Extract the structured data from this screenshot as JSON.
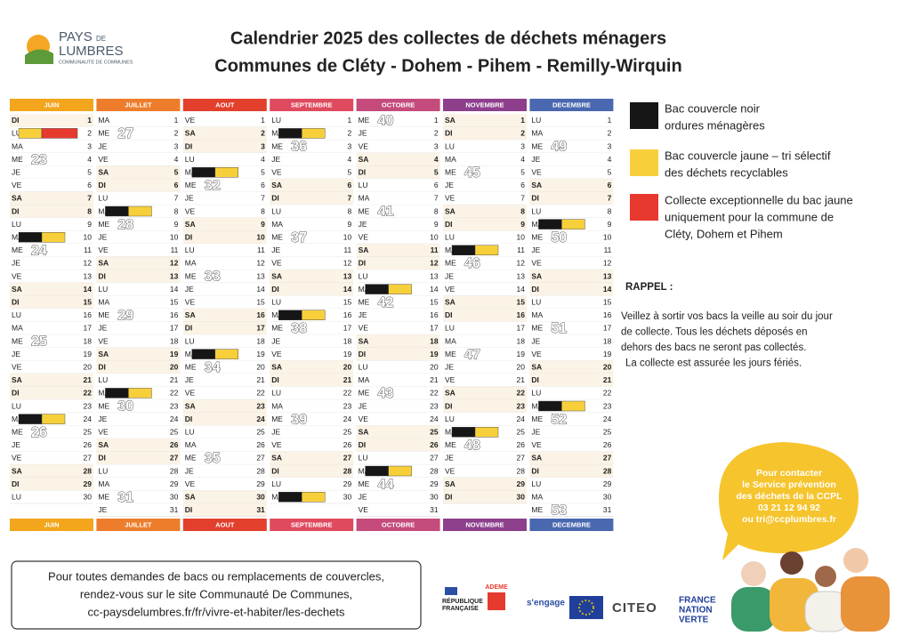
{
  "header": {
    "logo": {
      "pays": "PAYS",
      "de": "DE",
      "lumbres": "LUMBRES",
      "cc": "COMMUNAUTÉ DE COMMUNES"
    },
    "title": "Calendrier 2025 des collectes de déchets ménagers",
    "subtitle": "Communes de Cléty - Dohem - Pihem - Remilly-Wirquin"
  },
  "calendar": {
    "months": [
      {
        "name": "JUIN",
        "color": "#f3a51c",
        "weeks": [
          23,
          24,
          25,
          26
        ],
        "days": [
          [
            "DI",
            1
          ],
          [
            "LU",
            2,
            [
              "jaune",
              "rouge"
            ]
          ],
          [
            "MA",
            3
          ],
          [
            "ME",
            4
          ],
          [
            "JE",
            5
          ],
          [
            "VE",
            6
          ],
          [
            "SA",
            7
          ],
          [
            "DI",
            8
          ],
          [
            "LU",
            9
          ],
          [
            "MA",
            10,
            [
              "noir",
              "jaune"
            ]
          ],
          [
            "ME",
            11
          ],
          [
            "JE",
            12
          ],
          [
            "VE",
            13
          ],
          [
            "SA",
            14
          ],
          [
            "DI",
            15
          ],
          [
            "LU",
            16
          ],
          [
            "MA",
            17
          ],
          [
            "ME",
            18
          ],
          [
            "JE",
            19
          ],
          [
            "VE",
            20
          ],
          [
            "SA",
            21
          ],
          [
            "DI",
            22
          ],
          [
            "LU",
            23
          ],
          [
            "MA",
            24,
            [
              "noir",
              "jaune"
            ]
          ],
          [
            "ME",
            25
          ],
          [
            "JE",
            26
          ],
          [
            "VE",
            27
          ],
          [
            "SA",
            28
          ],
          [
            "DI",
            29
          ],
          [
            "LU",
            30
          ]
        ]
      },
      {
        "name": "JUILLET",
        "color": "#ee7d2b",
        "weeks": [
          27,
          28,
          29,
          30,
          31
        ],
        "days": [
          [
            "MA",
            1
          ],
          [
            "ME",
            2
          ],
          [
            "JE",
            3
          ],
          [
            "VE",
            4
          ],
          [
            "SA",
            5
          ],
          [
            "DI",
            6
          ],
          [
            "LU",
            7
          ],
          [
            "MA",
            8,
            [
              "noir",
              "jaune"
            ]
          ],
          [
            "ME",
            9
          ],
          [
            "JE",
            10
          ],
          [
            "VE",
            11
          ],
          [
            "SA",
            12
          ],
          [
            "DI",
            13
          ],
          [
            "LU",
            14
          ],
          [
            "MA",
            15
          ],
          [
            "ME",
            16
          ],
          [
            "JE",
            17
          ],
          [
            "VE",
            18
          ],
          [
            "SA",
            19
          ],
          [
            "DI",
            20
          ],
          [
            "LU",
            21
          ],
          [
            "MA",
            22,
            [
              "noir",
              "jaune"
            ]
          ],
          [
            "ME",
            23
          ],
          [
            "JE",
            24
          ],
          [
            "VE",
            25
          ],
          [
            "SA",
            26
          ],
          [
            "DI",
            27
          ],
          [
            "LU",
            28
          ],
          [
            "MA",
            29
          ],
          [
            "ME",
            30
          ],
          [
            "JE",
            31
          ]
        ]
      },
      {
        "name": "AOUT",
        "color": "#e2402c",
        "weeks": [
          32,
          33,
          34,
          35
        ],
        "days": [
          [
            "VE",
            1
          ],
          [
            "SA",
            2
          ],
          [
            "DI",
            3
          ],
          [
            "LU",
            4
          ],
          [
            "MA",
            5,
            [
              "noir",
              "jaune"
            ]
          ],
          [
            "ME",
            6
          ],
          [
            "JE",
            7
          ],
          [
            "VE",
            8
          ],
          [
            "SA",
            9
          ],
          [
            "DI",
            10
          ],
          [
            "LU",
            11
          ],
          [
            "MA",
            12
          ],
          [
            "ME",
            13
          ],
          [
            "JE",
            14
          ],
          [
            "VE",
            15
          ],
          [
            "SA",
            16
          ],
          [
            "DI",
            17
          ],
          [
            "LU",
            18
          ],
          [
            "MA",
            19,
            [
              "noir",
              "jaune"
            ]
          ],
          [
            "ME",
            20
          ],
          [
            "JE",
            21
          ],
          [
            "VE",
            22
          ],
          [
            "SA",
            23
          ],
          [
            "DI",
            24
          ],
          [
            "LU",
            25
          ],
          [
            "MA",
            26
          ],
          [
            "ME",
            27
          ],
          [
            "JE",
            28
          ],
          [
            "VE",
            29
          ],
          [
            "SA",
            30
          ],
          [
            "DI",
            31
          ]
        ]
      },
      {
        "name": "SEPTEMBRE",
        "color": "#df4a5e",
        "weeks": [
          36,
          37,
          38,
          39
        ],
        "days": [
          [
            "LU",
            1
          ],
          [
            "MA",
            2,
            [
              "noir",
              "jaune"
            ]
          ],
          [
            "ME",
            3
          ],
          [
            "JE",
            4
          ],
          [
            "VE",
            5
          ],
          [
            "SA",
            6
          ],
          [
            "DI",
            7
          ],
          [
            "LU",
            8
          ],
          [
            "MA",
            9
          ],
          [
            "ME",
            10
          ],
          [
            "JE",
            11
          ],
          [
            "VE",
            12
          ],
          [
            "SA",
            13
          ],
          [
            "DI",
            14
          ],
          [
            "LU",
            15
          ],
          [
            "MA",
            16,
            [
              "noir",
              "jaune"
            ]
          ],
          [
            "ME",
            17
          ],
          [
            "JE",
            18
          ],
          [
            "VE",
            19
          ],
          [
            "SA",
            20
          ],
          [
            "DI",
            21
          ],
          [
            "LU",
            22
          ],
          [
            "MA",
            23
          ],
          [
            "ME",
            24
          ],
          [
            "JE",
            25
          ],
          [
            "VE",
            26
          ],
          [
            "SA",
            27
          ],
          [
            "DI",
            28
          ],
          [
            "LU",
            29
          ],
          [
            "MA",
            30,
            [
              "noir",
              "jaune"
            ]
          ]
        ]
      },
      {
        "name": "OCTOBRE",
        "color": "#c54b7c",
        "weeks": [
          40,
          41,
          42,
          43,
          44
        ],
        "days": [
          [
            "ME",
            1
          ],
          [
            "JE",
            2
          ],
          [
            "VE",
            3
          ],
          [
            "SA",
            4
          ],
          [
            "DI",
            5
          ],
          [
            "LU",
            6
          ],
          [
            "MA",
            7
          ],
          [
            "ME",
            8
          ],
          [
            "JE",
            9
          ],
          [
            "VE",
            10
          ],
          [
            "SA",
            11
          ],
          [
            "DI",
            12
          ],
          [
            "LU",
            13
          ],
          [
            "MA",
            14,
            [
              "noir",
              "jaune"
            ]
          ],
          [
            "ME",
            15
          ],
          [
            "JE",
            16
          ],
          [
            "VE",
            17
          ],
          [
            "SA",
            18
          ],
          [
            "DI",
            19
          ],
          [
            "LU",
            20
          ],
          [
            "MA",
            21
          ],
          [
            "ME",
            22
          ],
          [
            "JE",
            23
          ],
          [
            "VE",
            24
          ],
          [
            "SA",
            25
          ],
          [
            "DI",
            26
          ],
          [
            "LU",
            27
          ],
          [
            "MA",
            28,
            [
              "noir",
              "jaune"
            ]
          ],
          [
            "ME",
            29
          ],
          [
            "JE",
            30
          ],
          [
            "VE",
            31
          ]
        ]
      },
      {
        "name": "NOVEMBRE",
        "color": "#8d3f8c",
        "weeks": [
          45,
          46,
          47,
          48
        ],
        "days": [
          [
            "SA",
            1
          ],
          [
            "DI",
            2
          ],
          [
            "LU",
            3
          ],
          [
            "MA",
            4
          ],
          [
            "ME",
            5
          ],
          [
            "JE",
            6
          ],
          [
            "VE",
            7
          ],
          [
            "SA",
            8
          ],
          [
            "DI",
            9
          ],
          [
            "LU",
            10
          ],
          [
            "MA",
            11,
            [
              "noir",
              "jaune"
            ]
          ],
          [
            "ME",
            12
          ],
          [
            "JE",
            13
          ],
          [
            "VE",
            14
          ],
          [
            "SA",
            15
          ],
          [
            "DI",
            16
          ],
          [
            "LU",
            17
          ],
          [
            "MA",
            18
          ],
          [
            "ME",
            19
          ],
          [
            "JE",
            20
          ],
          [
            "VE",
            21
          ],
          [
            "SA",
            22
          ],
          [
            "DI",
            23
          ],
          [
            "LU",
            24
          ],
          [
            "MA",
            25,
            [
              "noir",
              "jaune"
            ]
          ],
          [
            "ME",
            26
          ],
          [
            "JE",
            27
          ],
          [
            "VE",
            28
          ],
          [
            "SA",
            29
          ],
          [
            "DI",
            30
          ]
        ]
      },
      {
        "name": "DECEMBRE",
        "color": "#4a68b0",
        "weeks": [
          49,
          50,
          51,
          52,
          53
        ],
        "days": [
          [
            "LU",
            1
          ],
          [
            "MA",
            2
          ],
          [
            "ME",
            3
          ],
          [
            "JE",
            4
          ],
          [
            "VE",
            5
          ],
          [
            "SA",
            6
          ],
          [
            "DI",
            7
          ],
          [
            "LU",
            8
          ],
          [
            "MA",
            9,
            [
              "noir",
              "jaune"
            ]
          ],
          [
            "ME",
            10
          ],
          [
            "JE",
            11
          ],
          [
            "VE",
            12
          ],
          [
            "SA",
            13
          ],
          [
            "DI",
            14
          ],
          [
            "LU",
            15
          ],
          [
            "MA",
            16
          ],
          [
            "ME",
            17
          ],
          [
            "JE",
            18
          ],
          [
            "VE",
            19
          ],
          [
            "SA",
            20
          ],
          [
            "DI",
            21
          ],
          [
            "LU",
            22
          ],
          [
            "MA",
            23,
            [
              "noir",
              "jaune"
            ]
          ],
          [
            "ME",
            24
          ],
          [
            "JE",
            25
          ],
          [
            "VE",
            26
          ],
          [
            "SA",
            27
          ],
          [
            "DI",
            28
          ],
          [
            "LU",
            29
          ],
          [
            "MA",
            30
          ],
          [
            "ME",
            31
          ]
        ]
      }
    ]
  },
  "legend": [
    {
      "key": "noir",
      "color": "#161616",
      "lines": [
        "Bac couvercle noir",
        "ordures ménagères"
      ]
    },
    {
      "key": "jaune",
      "color": "#f7cf3a",
      "lines": [
        "Bac couvercle jaune – tri sélectif",
        "des déchets recyclables"
      ]
    },
    {
      "key": "rouge",
      "color": "#e8392e",
      "lines": [
        "Collecte exceptionnelle du bac jaune",
        "uniquement pour la commune de",
        "Cléty, Dohem et Pihem"
      ]
    }
  ],
  "rappel": {
    "title": "RAPPEL :",
    "lines": [
      "Veillez à sortir vos bacs la veille au soir du jour",
      "de collecte. Tous les déchets déposés en",
      "dehors des bacs ne seront pas collectés.",
      "La collecte est assurée les jours fériés."
    ]
  },
  "contact": {
    "lines": [
      "Pour contacter",
      "le Service prévention",
      "des déchets de la CCPL",
      "03 21 12 94 92",
      "ou tri@ccplumbres.fr"
    ]
  },
  "footer": {
    "lines": [
      "Pour toutes demandes de bacs ou remplacements de couvercles,",
      "rendez-vous sur le site Communauté De Communes,",
      "cc-paysdelumbres.fr/fr/vivre-et-habiter/les-dechets"
    ]
  },
  "logos": {
    "republique": [
      "RÉPUBLIQUE",
      "FRANÇAISE"
    ],
    "ademe": "ADEME",
    "europe": "s'engage",
    "citeo": "CITEO",
    "fnv": [
      "FRANCE",
      "NATION",
      "VERTE"
    ]
  }
}
